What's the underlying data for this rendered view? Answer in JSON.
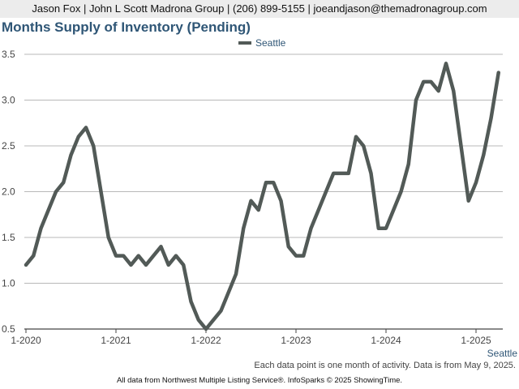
{
  "header": {
    "contact": "Jason Fox | John L Scott Madrona Group | (206) 899-5155 | joeandjason@themadronagroup.com"
  },
  "chart_data": {
    "type": "line",
    "title": "Months Supply of Inventory (Pending)",
    "xlabel": "",
    "ylabel": "",
    "ylim": [
      0.5,
      3.5
    ],
    "yticks": [
      "0.5",
      "1.0",
      "1.5",
      "2.0",
      "2.5",
      "3.0",
      "3.5"
    ],
    "xticks": [
      "1-2020",
      "1-2021",
      "1-2022",
      "1-2023",
      "1-2024",
      "1-2025"
    ],
    "grid": true,
    "legend_position": "top-center",
    "series": [
      {
        "name": "Seattle",
        "color": "#525a57",
        "x": [
          "1-2020",
          "2-2020",
          "3-2020",
          "4-2020",
          "5-2020",
          "6-2020",
          "7-2020",
          "8-2020",
          "9-2020",
          "10-2020",
          "11-2020",
          "12-2020",
          "1-2021",
          "2-2021",
          "3-2021",
          "4-2021",
          "5-2021",
          "6-2021",
          "7-2021",
          "8-2021",
          "9-2021",
          "10-2021",
          "11-2021",
          "12-2021",
          "1-2022",
          "2-2022",
          "3-2022",
          "4-2022",
          "5-2022",
          "6-2022",
          "7-2022",
          "8-2022",
          "9-2022",
          "10-2022",
          "11-2022",
          "12-2022",
          "1-2023",
          "2-2023",
          "3-2023",
          "4-2023",
          "5-2023",
          "6-2023",
          "7-2023",
          "8-2023",
          "9-2023",
          "10-2023",
          "11-2023",
          "12-2023",
          "1-2024",
          "2-2024",
          "3-2024",
          "4-2024",
          "5-2024",
          "6-2024",
          "7-2024",
          "8-2024",
          "9-2024",
          "10-2024",
          "11-2024",
          "12-2024",
          "1-2025",
          "2-2025",
          "3-2025",
          "4-2025"
        ],
        "values": [
          1.2,
          1.3,
          1.6,
          1.8,
          2.0,
          2.1,
          2.4,
          2.6,
          2.7,
          2.5,
          2.0,
          1.5,
          1.3,
          1.3,
          1.2,
          1.3,
          1.2,
          1.3,
          1.4,
          1.2,
          1.3,
          1.2,
          0.8,
          0.6,
          0.5,
          0.6,
          0.7,
          0.9,
          1.1,
          1.6,
          1.9,
          1.8,
          2.1,
          2.1,
          1.9,
          1.4,
          1.3,
          1.3,
          1.6,
          1.8,
          2.0,
          2.2,
          2.2,
          2.2,
          2.6,
          2.5,
          2.2,
          1.6,
          1.6,
          1.8,
          2.0,
          2.3,
          3.0,
          3.2,
          3.2,
          3.1,
          3.4,
          3.1,
          2.5,
          1.9,
          2.1,
          2.4,
          2.8,
          3.3
        ]
      }
    ]
  },
  "footnotes": {
    "series_end_label": "Seattle",
    "activity_note": "Each data point is one month of activity. Data is from May 9, 2025.",
    "source": "All data from Northwest Multiple Listing Service®. InfoSparks © 2025 ShowingTime."
  }
}
